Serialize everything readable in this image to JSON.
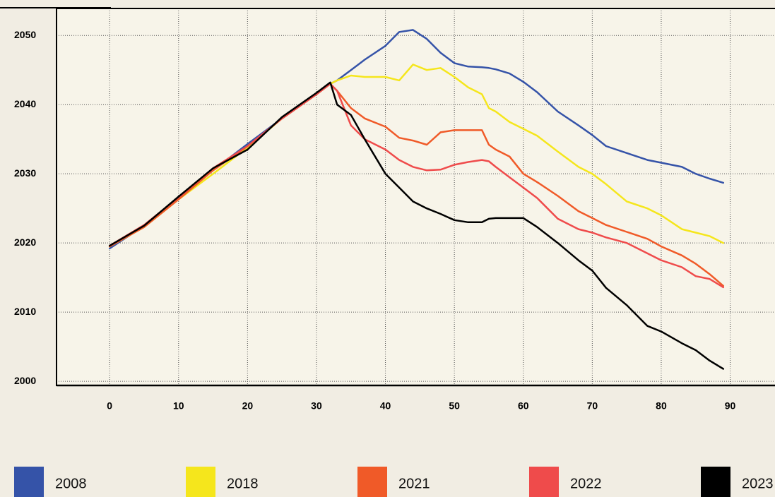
{
  "chart_data": {
    "type": "line",
    "x": [
      0,
      5,
      10,
      15,
      20,
      25,
      30,
      32,
      33,
      35,
      37,
      40,
      42,
      44,
      46,
      48,
      50,
      52,
      54,
      55,
      56,
      58,
      60,
      62,
      65,
      68,
      70,
      72,
      75,
      78,
      80,
      83,
      85,
      87,
      89
    ],
    "series": [
      {
        "name": "2008",
        "color": "#3553a8",
        "values": [
          2019.2,
          2022.5,
          2026.5,
          2030.5,
          2034.3,
          2038,
          2041.5,
          2043,
          2043.5,
          2045,
          2046.5,
          2048.5,
          2050.5,
          2050.8,
          2049.5,
          2047.5,
          2046,
          2045.5,
          2045.4,
          2045.3,
          2045.1,
          2044.5,
          2043.3,
          2041.8,
          2039,
          2037,
          2035.6,
          2034,
          2033,
          2032,
          2031.6,
          2031,
          2030,
          2029.3,
          2028.7
        ]
      },
      {
        "name": "2018",
        "color": "#f5e61c",
        "values": [
          2019.5,
          2022.3,
          2026.3,
          2030,
          2033.8,
          2038,
          2041.5,
          2043,
          2043.5,
          2044.2,
          2044,
          2044,
          2043.5,
          2045.8,
          2045,
          2045.3,
          2044,
          2042.5,
          2041.5,
          2039.5,
          2039,
          2037.5,
          2036.5,
          2035.5,
          2033.2,
          2031,
          2030,
          2028.5,
          2026,
          2025,
          2024,
          2022,
          2021.5,
          2021,
          2020
        ]
      },
      {
        "name": "2021",
        "color": "#f05a28",
        "values": [
          2019.5,
          2022.3,
          2026.3,
          2030.5,
          2034,
          2038,
          2041.5,
          2043,
          2042,
          2039.5,
          2038,
          2036.8,
          2035.2,
          2034.8,
          2034.2,
          2036,
          2036.3,
          2036.3,
          2036.3,
          2034.2,
          2033.5,
          2032.5,
          2030,
          2028.8,
          2026.8,
          2024.6,
          2023.6,
          2022.6,
          2021.6,
          2020.6,
          2019.5,
          2018.2,
          2017,
          2015.5,
          2013.8
        ]
      },
      {
        "name": "2022",
        "color": "#ef4b4b",
        "values": [
          2019.6,
          2022.6,
          2026.6,
          2030.8,
          2034,
          2038,
          2041.5,
          2043,
          2042,
          2037,
          2035,
          2033.5,
          2032,
          2031,
          2030.5,
          2030.6,
          2031.3,
          2031.7,
          2032,
          2031.8,
          2031,
          2029.5,
          2028,
          2026.5,
          2023.5,
          2022,
          2021.5,
          2020.8,
          2020,
          2018.5,
          2017.5,
          2016.5,
          2015.2,
          2014.8,
          2013.6
        ]
      },
      {
        "name": "2023",
        "color": "#000000",
        "values": [
          2019.6,
          2022.5,
          2026.7,
          2030.8,
          2033.5,
          2038.2,
          2041.7,
          2043.2,
          2040,
          2038.5,
          2035,
          2030,
          2028,
          2026,
          2025,
          2024.2,
          2023.3,
          2023,
          2023,
          2023.5,
          2023.6,
          2023.6,
          2023.6,
          2022.3,
          2020,
          2017.5,
          2016,
          2013.5,
          2011,
          2008,
          2007.2,
          2005.5,
          2004.5,
          2003,
          2001.8
        ]
      }
    ],
    "xlim": [
      -7.7,
      96.5
    ],
    "ylim": [
      1999.4,
      2053.9
    ],
    "xticks": [
      0,
      10,
      20,
      30,
      40,
      50,
      60,
      70,
      80,
      90
    ],
    "yticks": [
      2000,
      2010,
      2020,
      2030,
      2040,
      2050
    ],
    "grid": true
  }
}
